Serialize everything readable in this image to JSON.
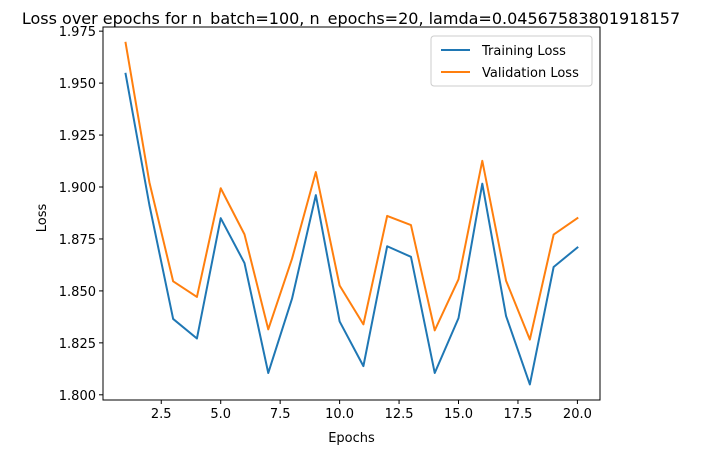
{
  "chart_data": {
    "type": "line",
    "title": "Loss over epochs for n_batch=100, n_epochs=20, lamda=0.04567583801918157",
    "xlabel": "Epochs",
    "ylabel": "Loss",
    "xlim": [
      0.05,
      20.95
    ],
    "ylim": [
      1.7975,
      1.977
    ],
    "xticks": [
      2.5,
      5.0,
      7.5,
      10.0,
      12.5,
      15.0,
      17.5,
      20.0
    ],
    "xtick_labels": [
      "2.5",
      "5.0",
      "7.5",
      "10.0",
      "12.5",
      "15.0",
      "17.5",
      "20.0"
    ],
    "yticks": [
      1.8,
      1.825,
      1.85,
      1.875,
      1.9,
      1.925,
      1.95,
      1.975
    ],
    "ytick_labels": [
      "1.800",
      "1.825",
      "1.850",
      "1.875",
      "1.900",
      "1.925",
      "1.950",
      "1.975"
    ],
    "grid": false,
    "legend_position": "top-right",
    "x": [
      1,
      2,
      3,
      4,
      5,
      6,
      7,
      8,
      9,
      10,
      11,
      12,
      13,
      14,
      15,
      16,
      17,
      18,
      19,
      20
    ],
    "series": [
      {
        "name": "Training Loss",
        "color": "#1f77b4",
        "values": [
          1.9545,
          1.8914,
          1.8365,
          1.8271,
          1.885,
          1.8634,
          1.8105,
          1.8463,
          1.8961,
          1.8353,
          1.8138,
          1.8715,
          1.8664,
          1.8105,
          1.8369,
          1.9016,
          1.8379,
          1.805,
          1.8615,
          1.8709
        ]
      },
      {
        "name": "Validation Loss",
        "color": "#ff7f0e",
        "values": [
          1.9694,
          1.9023,
          1.8546,
          1.8471,
          1.8994,
          1.8772,
          1.8315,
          1.8655,
          1.9072,
          1.8526,
          1.8339,
          1.8861,
          1.8817,
          1.831,
          1.8556,
          1.9126,
          1.8549,
          1.8266,
          1.8771,
          1.885
        ]
      }
    ]
  }
}
